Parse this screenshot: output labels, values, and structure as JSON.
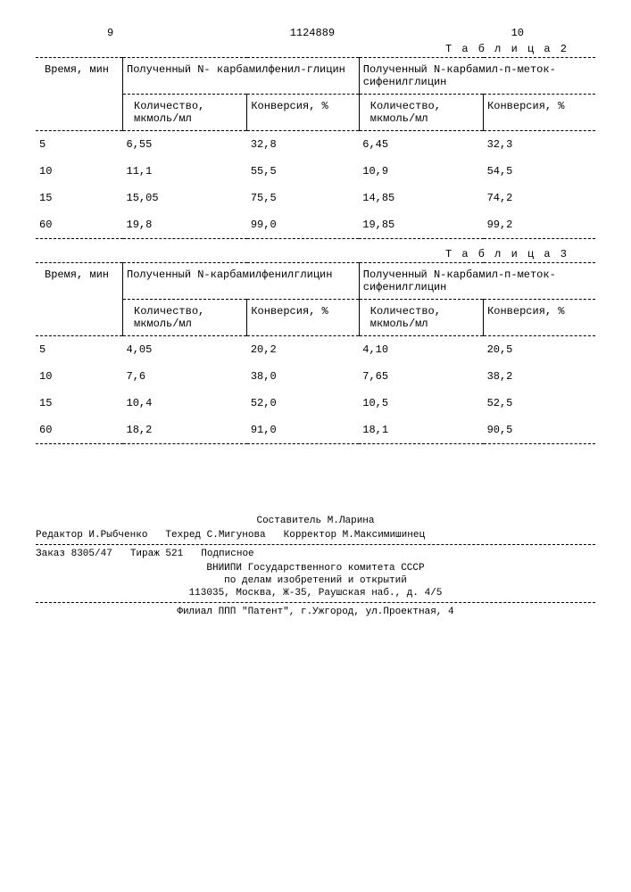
{
  "header": {
    "left_num": "9",
    "doc_num": "1124889",
    "right_num": "10"
  },
  "table2": {
    "label": "Т а б л и ц а  2",
    "col_time": "Время, мин",
    "group1": "Полученный N- карбамилфенил-глицин",
    "group2": "Полученный N-карбамил-п-меток-сифенилглицин",
    "sub_qty": "Количество, мкмоль/мл",
    "sub_conv": "Конверсия, %",
    "rows": [
      {
        "t": "5",
        "q1": "6,55",
        "c1": "32,8",
        "q2": "6,45",
        "c2": "32,3"
      },
      {
        "t": "10",
        "q1": "11,1",
        "c1": "55,5",
        "q2": "10,9",
        "c2": "54,5"
      },
      {
        "t": "15",
        "q1": "15,05",
        "c1": "75,5",
        "q2": "14,85",
        "c2": "74,2"
      },
      {
        "t": "60",
        "q1": "19,8",
        "c1": "99,0",
        "q2": "19,85",
        "c2": "99,2"
      }
    ]
  },
  "table3": {
    "label": "Т а б л и ц а  3",
    "col_time": "Время, мин",
    "group1": "Полученный N-карбамилфенилглицин",
    "group2": "Полученный N-карбамил-п-меток-сифенилглицин",
    "sub_qty": "Количество, мкмоль/мл",
    "sub_conv": "Конверсия, %",
    "rows": [
      {
        "t": "5",
        "q1": "4,05",
        "c1": "20,2",
        "q2": "4,10",
        "c2": "20,5"
      },
      {
        "t": "10",
        "q1": "7,6",
        "c1": "38,0",
        "q2": "7,65",
        "c2": "38,2"
      },
      {
        "t": "15",
        "q1": "10,4",
        "c1": "52,0",
        "q2": "10,5",
        "c2": "52,5"
      },
      {
        "t": "60",
        "q1": "18,2",
        "c1": "91,0",
        "q2": "18,1",
        "c2": "90,5"
      }
    ]
  },
  "footer": {
    "composer": "Составитель М.Ларина",
    "editor": "Редактор И.Рыбченко",
    "tech": "Техред С.Мигунова",
    "corrector": "Корректор М.Максимишинец",
    "order": "Заказ 8305/47",
    "tirazh": "Тираж 521",
    "sign": "Подписное",
    "org1": "ВНИИПИ Государственного комитета СССР",
    "org2": "по делам изобретений и открытий",
    "addr1": "113035, Москва, Ж-35, Раушская наб., д. 4/5",
    "filial": "Филиал ППП \"Патент\", г.Ужгород, ул.Проектная, 4"
  }
}
